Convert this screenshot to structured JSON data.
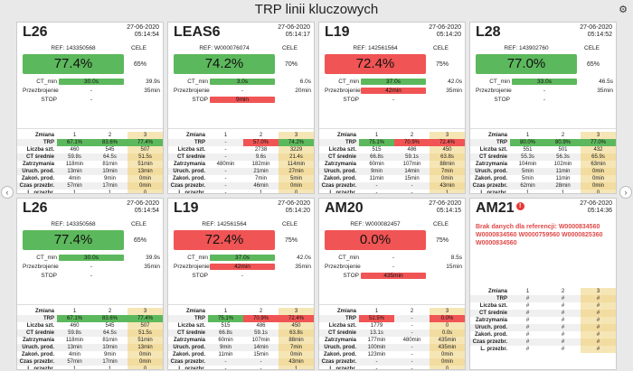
{
  "header": {
    "title": "TRP linii kluczowych",
    "settings_icon": "gear-icon"
  },
  "nav": {
    "prev": "‹",
    "next": "›"
  },
  "colors": {
    "good": "#5cb85c",
    "bad": "#f05454",
    "shift3": "#f6e6b5"
  },
  "labels": {
    "cele": "CELE",
    "ct_min": "CT_min",
    "przezbrojenie": "Przezbrojenie",
    "stop": "STOP",
    "zmiana": "Zmiana",
    "trp": "TRP",
    "liczba": "Liczba szt.",
    "ct_sr": "CT średnie",
    "zatrzymania": "Zatrzymania",
    "uruch": "Uruch. prod.",
    "zakon": "Zakoń. prod.",
    "czas": "Czas przezbr.",
    "lprz": "L. przezbr.",
    "s1": "1",
    "s2": "2",
    "s3": "3"
  },
  "cards": [
    {
      "name": "L26",
      "date": "27-06-2020",
      "time": "05:14:54",
      "ref": "REF: 143350568",
      "big": "77.4%",
      "big_status": "good",
      "big_target": "65%",
      "ct": "30.0s",
      "ct_status": "good",
      "ct_target": "39.9s",
      "prz": "-",
      "prz_status": "none",
      "prz_target": "35min",
      "stop": "-",
      "stop_status": "none",
      "rows": {
        "trp": [
          "67.1%",
          "83.6%",
          "77.4%"
        ],
        "trp_status": [
          "good",
          "good",
          "good"
        ],
        "liczba": [
          "460",
          "545",
          "507"
        ],
        "ct_sr": [
          "59.8s",
          "64.5s",
          "51.5s"
        ],
        "zatrzymania": [
          "118min",
          "81min",
          "51min"
        ],
        "uruch": [
          "13min",
          "10min",
          "13min"
        ],
        "zakon": [
          "4min",
          "9min",
          "0min"
        ],
        "czas": [
          "57min",
          "17min",
          "0min"
        ],
        "lprz": [
          "1",
          "1",
          "0"
        ]
      }
    },
    {
      "name": "LEAS6",
      "date": "27-06-2020",
      "time": "05:14:17",
      "ref": "REF: W000076074",
      "big": "74.2%",
      "big_status": "good",
      "big_target": "70%",
      "ct": "3.0s",
      "ct_status": "good",
      "ct_target": "6.0s",
      "prz": "-",
      "prz_status": "none",
      "prz_target": "20min",
      "stop": "9min",
      "stop_status": "bad",
      "rows": {
        "trp": [
          "-",
          "57.0%",
          "74.2%"
        ],
        "trp_status": [
          "none",
          "bad",
          "good"
        ],
        "liczba": [
          "-",
          "2738",
          "3229"
        ],
        "ct_sr": [
          "-",
          "9.6s",
          "21.4s"
        ],
        "zatrzymania": [
          "480min",
          "182min",
          "114min"
        ],
        "uruch": [
          "-",
          "21min",
          "27min"
        ],
        "zakon": [
          "-",
          "7min",
          "5min"
        ],
        "czas": [
          "-",
          "46min",
          "0min"
        ],
        "lprz": [
          "-",
          "1",
          "0"
        ]
      }
    },
    {
      "name": "L19",
      "date": "27-06-2020",
      "time": "05:14:20",
      "ref": "REF: 142561564",
      "big": "72.4%",
      "big_status": "bad",
      "big_target": "75%",
      "ct": "37.0s",
      "ct_status": "good",
      "ct_target": "42.0s",
      "prz": "42min",
      "prz_status": "bad",
      "prz_target": "35min",
      "stop": "-",
      "stop_status": "none",
      "rows": {
        "trp": [
          "75.1%",
          "70.9%",
          "72.4%"
        ],
        "trp_status": [
          "good",
          "bad",
          "bad"
        ],
        "liczba": [
          "515",
          "486",
          "450"
        ],
        "ct_sr": [
          "66.8s",
          "59.1s",
          "63.8s"
        ],
        "zatrzymania": [
          "60min",
          "107min",
          "88min"
        ],
        "uruch": [
          "9min",
          "14min",
          "7min"
        ],
        "zakon": [
          "11min",
          "15min",
          "0min"
        ],
        "czas": [
          "-",
          "-",
          "43min"
        ],
        "lprz": [
          "-",
          "-",
          "1"
        ]
      }
    },
    {
      "name": "L28",
      "date": "27-06-2020",
      "time": "05:14:52",
      "ref": "REF: 143902760",
      "big": "77.0%",
      "big_status": "good",
      "big_target": "65%",
      "ct": "33.0s",
      "ct_status": "good",
      "ct_target": "46.5s",
      "prz": "-",
      "prz_status": "none",
      "prz_target": "35min",
      "stop": "-",
      "stop_status": "none",
      "rows": {
        "trp": [
          "80.0%",
          "80.9%",
          "77.0%"
        ],
        "trp_status": [
          "good",
          "good",
          "good"
        ],
        "liczba": [
          "551",
          "501",
          "432"
        ],
        "ct_sr": [
          "55.3s",
          "56.3s",
          "65.9s"
        ],
        "zatrzymania": [
          "104min",
          "102min",
          "63min"
        ],
        "uruch": [
          "5min",
          "11min",
          "0min"
        ],
        "zakon": [
          "5min",
          "11min",
          "0min"
        ],
        "czas": [
          "62min",
          "28min",
          "0min"
        ],
        "lprz": [
          "1",
          "1",
          "0"
        ]
      }
    },
    {
      "name": "L26",
      "date": "27-06-2020",
      "time": "05:14:54",
      "ref": "REF: 143350568",
      "big": "77.4%",
      "big_status": "good",
      "big_target": "65%",
      "ct": "30.0s",
      "ct_status": "good",
      "ct_target": "39.9s",
      "prz": "-",
      "prz_status": "none",
      "prz_target": "35min",
      "stop": "-",
      "stop_status": "none",
      "rows": {
        "trp": [
          "67.1%",
          "83.6%",
          "77.4%"
        ],
        "trp_status": [
          "good",
          "good",
          "good"
        ],
        "liczba": [
          "460",
          "545",
          "507"
        ],
        "ct_sr": [
          "59.8s",
          "64.5s",
          "51.5s"
        ],
        "zatrzymania": [
          "118min",
          "81min",
          "51min"
        ],
        "uruch": [
          "13min",
          "10min",
          "13min"
        ],
        "zakon": [
          "4min",
          "9min",
          "0min"
        ],
        "czas": [
          "57min",
          "17min",
          "0min"
        ],
        "lprz": [
          "1",
          "1",
          "0"
        ]
      }
    },
    {
      "name": "L19",
      "date": "27-06-2020",
      "time": "05:14:20",
      "ref": "REF: 142561564",
      "big": "72.4%",
      "big_status": "bad",
      "big_target": "75%",
      "ct": "37.0s",
      "ct_status": "good",
      "ct_target": "42.0s",
      "prz": "42min",
      "prz_status": "bad",
      "prz_target": "35min",
      "stop": "-",
      "stop_status": "none",
      "rows": {
        "trp": [
          "75.1%",
          "70.9%",
          "72.4%"
        ],
        "trp_status": [
          "good",
          "bad",
          "bad"
        ],
        "liczba": [
          "515",
          "486",
          "450"
        ],
        "ct_sr": [
          "66.8s",
          "59.1s",
          "63.8s"
        ],
        "zatrzymania": [
          "60min",
          "107min",
          "88min"
        ],
        "uruch": [
          "9min",
          "14min",
          "7min"
        ],
        "zakon": [
          "11min",
          "15min",
          "0min"
        ],
        "czas": [
          "-",
          "-",
          "43min"
        ],
        "lprz": [
          "-",
          "-",
          "1"
        ]
      }
    },
    {
      "name": "AM20",
      "date": "27-06-2020",
      "time": "05:14:15",
      "ref": "REF: W000082457",
      "big": "0.0%",
      "big_status": "bad",
      "big_target": "75%",
      "ct": "-",
      "ct_status": "none",
      "ct_target": "8.5s",
      "prz": "-",
      "prz_status": "none",
      "prz_target": "15min",
      "stop": "435min",
      "stop_status": "bad",
      "rows": {
        "trp": [
          "52.5%",
          "-",
          "0.0%"
        ],
        "trp_status": [
          "bad",
          "none",
          "bad"
        ],
        "liczba": [
          "1779",
          "-",
          "0"
        ],
        "ct_sr": [
          "13.1s",
          "-",
          "0.0s"
        ],
        "zatrzymania": [
          "177min",
          "480min",
          "435min"
        ],
        "uruch": [
          "100min",
          "-",
          "435min"
        ],
        "zakon": [
          "123min",
          "-",
          "0min"
        ],
        "czas": [
          "-",
          "-",
          "0min"
        ],
        "lprz": [
          "-",
          "-",
          "0"
        ]
      }
    },
    {
      "name": "AM21",
      "date": "27-06-2020",
      "time": "05:14:36",
      "warning": "!",
      "error": "Brak danych dla referencji: W0000834560 W0000834560 W0000759560 W0000825360 W0000834560",
      "rows": {
        "trp": [
          "#",
          "#",
          "#"
        ],
        "liczba": [
          "#",
          "#",
          "#"
        ],
        "ct_sr": [
          "#",
          "#",
          "#"
        ],
        "zatrzymania": [
          "#",
          "#",
          "#"
        ],
        "uruch": [
          "#",
          "#",
          "#"
        ],
        "zakon": [
          "#",
          "#",
          "#"
        ],
        "czas": [
          "#",
          "#",
          "#"
        ],
        "lprz": [
          "#",
          "#",
          "#"
        ]
      }
    }
  ]
}
